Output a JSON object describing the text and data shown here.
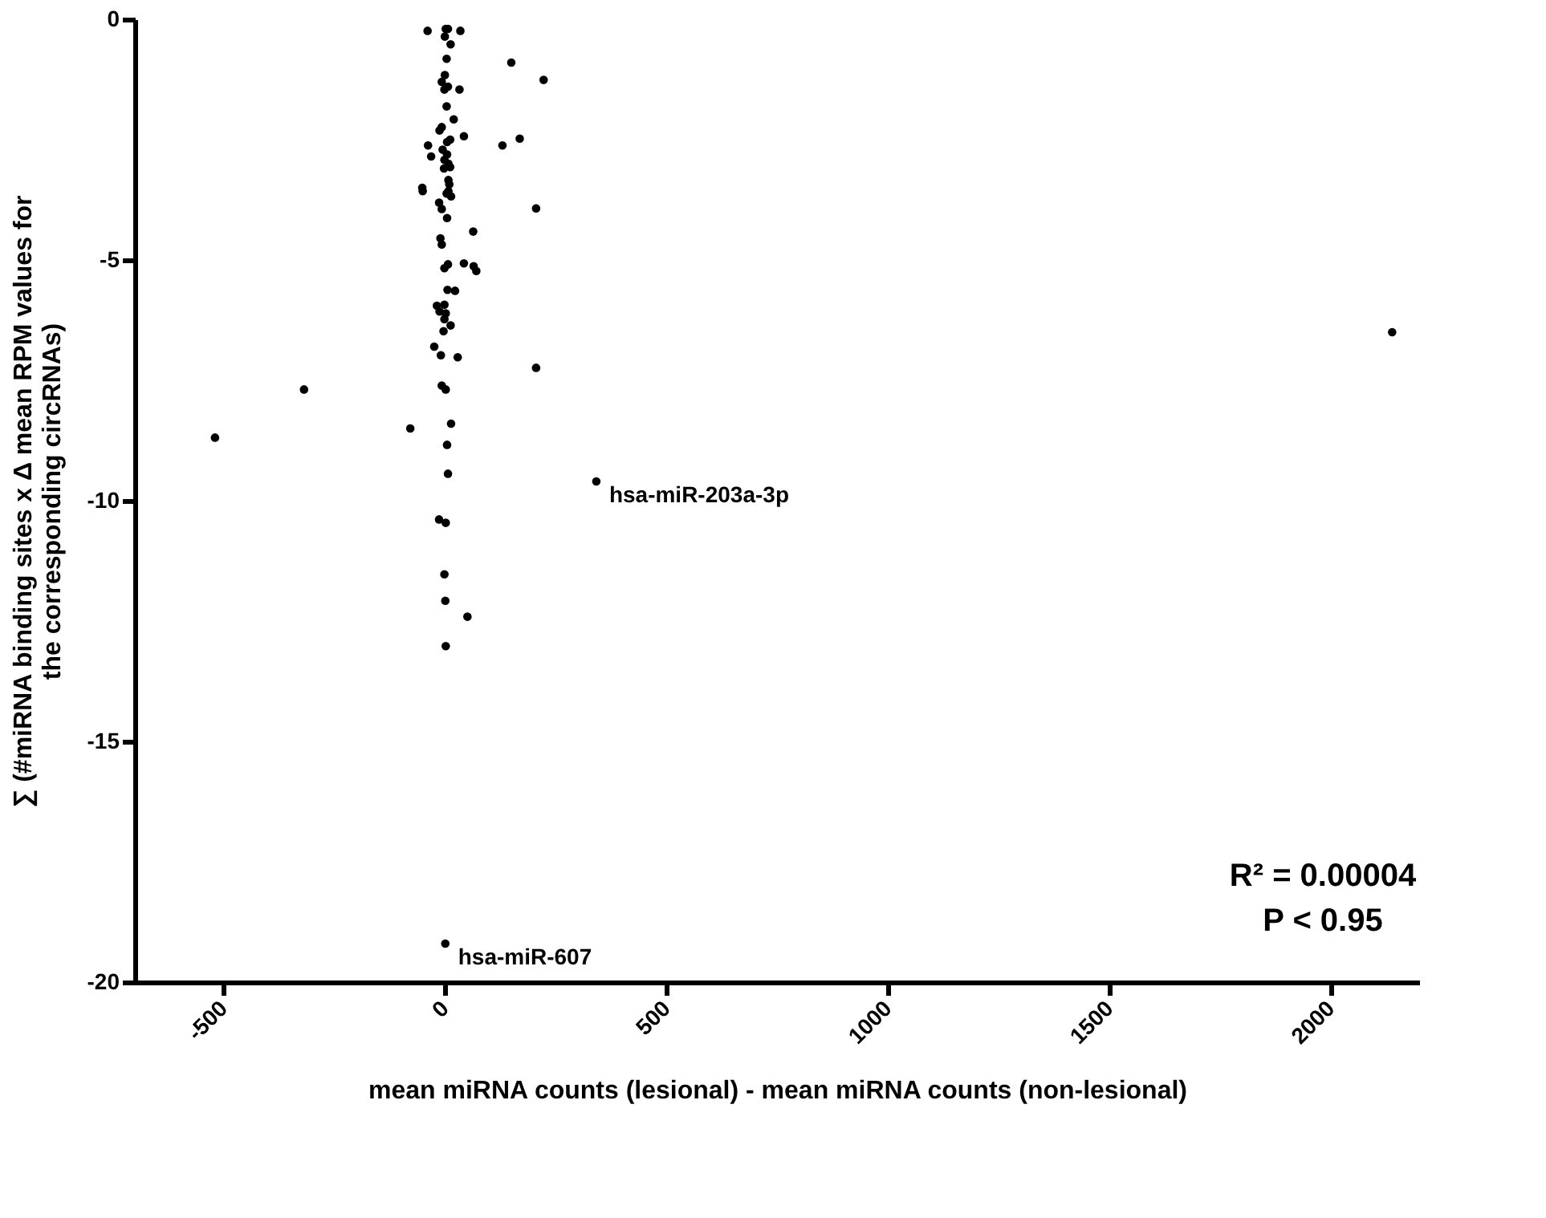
{
  "chart_data": {
    "type": "scatter",
    "xlabel": "mean miRNA counts (lesional) - mean miRNA counts (non-lesional)",
    "ylabel": "∑ (#miRNA binding sites x Δ mean RPM values for\nthe corresponding circRNAs)",
    "xlim": [
      -700,
      2200
    ],
    "xticks": [
      -500,
      0,
      500,
      1000,
      1500,
      2000
    ],
    "ylim": [
      -20,
      0
    ],
    "yticks": [
      -20,
      -15,
      -10,
      -5,
      0
    ],
    "grid": false,
    "marker": "circle",
    "series": [
      {
        "color": "#000000",
        "x": [
          -39,
          2,
          7,
          35,
          0,
          13,
          4,
          150,
          223,
          0,
          -7,
          -1,
          7,
          33,
          4,
          20,
          -12,
          -7,
          43,
          12,
          5,
          130,
          169,
          -38,
          -5,
          5,
          -31,
          -1,
          8,
          -2,
          12,
          8,
          10,
          -51,
          -50,
          8,
          14,
          4,
          -13,
          -7,
          5,
          206,
          64,
          -10,
          -7,
          -1,
          7,
          43,
          65,
          71,
          6,
          23,
          -18,
          -1,
          -12,
          2,
          -1,
          13,
          -3,
          -24,
          -9,
          29,
          206,
          -318,
          -7,
          2,
          -78,
          14,
          5,
          7,
          342,
          -13,
          2,
          -1,
          1,
          51,
          2,
          -519,
          1,
          2139
        ],
        "values": [
          -0.24,
          -0.2,
          -0.2,
          -0.24,
          -0.36,
          -0.52,
          -0.82,
          -0.9,
          -1.26,
          -1.16,
          -1.3,
          -1.46,
          -1.4,
          -1.46,
          -1.81,
          -2.08,
          -2.31,
          -2.24,
          -2.43,
          -2.5,
          -2.55,
          -2.62,
          -2.48,
          -2.62,
          -2.71,
          -2.81,
          -2.85,
          -2.92,
          -3.0,
          -3.1,
          -3.07,
          -3.34,
          -3.43,
          -3.5,
          -3.57,
          -3.57,
          -3.68,
          -3.62,
          -3.81,
          -3.94,
          -4.13,
          -3.93,
          -4.41,
          -4.55,
          -4.68,
          -5.17,
          -5.09,
          -5.07,
          -5.13,
          -5.23,
          -5.62,
          -5.64,
          -5.95,
          -5.93,
          -6.07,
          -6.11,
          -6.23,
          -6.36,
          -6.48,
          -6.8,
          -6.98,
          -7.02,
          -7.24,
          -7.69,
          -7.61,
          -7.69,
          -8.5,
          -8.4,
          -8.84,
          -9.44,
          -9.6,
          -10.39,
          -10.46,
          -11.53,
          -12.08,
          -12.41,
          -13.02,
          -8.69,
          -19.2,
          -6.5
        ]
      }
    ],
    "annotations": [
      {
        "text": "hsa-miR-203a-3p",
        "x": 342,
        "y": -9.6
      },
      {
        "text": "hsa-miR-607",
        "x": 1,
        "y": -19.2
      },
      "R² = 0.00004",
      "P < 0.95"
    ]
  }
}
